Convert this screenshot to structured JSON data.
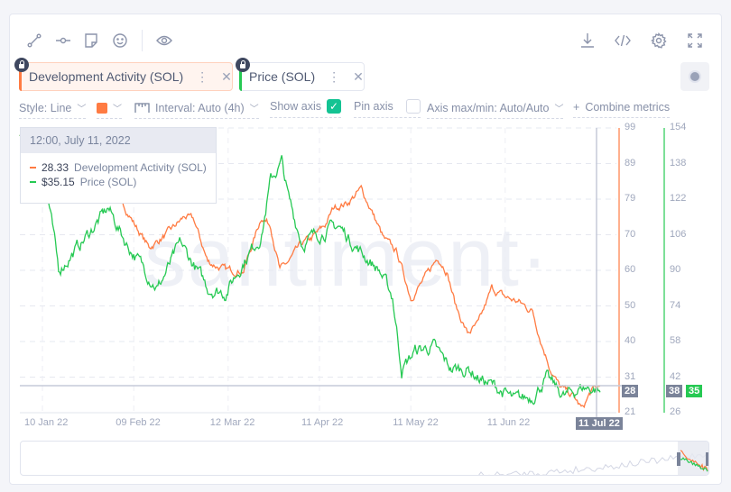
{
  "toolbar": {
    "left_icons": [
      "line-draw-icon",
      "horizontal-ray-icon",
      "note-icon",
      "emoji-icon",
      "eye-icon"
    ],
    "right_icons": [
      "download-icon",
      "embed-code-icon",
      "settings-icon",
      "fullscreen-icon"
    ]
  },
  "metrics": [
    {
      "label": "Development Activity (SOL)",
      "color": "#ff7b42",
      "locked": true
    },
    {
      "label": "Price (SOL)",
      "color": "#26c953",
      "locked": true
    }
  ],
  "options": {
    "style": "Style: Line",
    "color": "#ff7b42",
    "interval": "Interval: Auto (4h)",
    "show_axis": "Show axis",
    "show_axis_checked": true,
    "pin_axis": "Pin axis",
    "pin_axis_checked": false,
    "axis_maxmin": "Axis max/min: Auto/Auto",
    "combine": "Combine metrics",
    "combine_icon": "+"
  },
  "tooltip": {
    "date": "12:00, July 11, 2022",
    "rows": [
      {
        "value": "28.33",
        "label": "Development Activity (SOL)",
        "color": "#ff7b42"
      },
      {
        "value": "$35.15",
        "label": "Price (SOL)",
        "color": "#26c953"
      }
    ]
  },
  "watermark": "santiment·",
  "chart_data": {
    "type": "line",
    "x_unit": "days since 10 Jan 22",
    "x_ticks": [
      {
        "day": 0,
        "label": "10 Jan 22"
      },
      {
        "day": 30,
        "label": "09 Feb 22"
      },
      {
        "day": 61,
        "label": "12 Mar 22"
      },
      {
        "day": 91,
        "label": "11 Apr 22"
      },
      {
        "day": 121,
        "label": "11 May 22"
      },
      {
        "day": 152,
        "label": "11 Jun 22"
      },
      {
        "day": 182,
        "label": "11 Jul 22"
      }
    ],
    "x_range": [
      -7.5,
      189
    ],
    "series": [
      {
        "name": "Development Activity (SOL)",
        "color": "#ff7b42",
        "axis": "left",
        "ylim": [
          21,
          99
        ],
        "ticks": [
          "99",
          "89",
          "79",
          "70",
          "60",
          "50",
          "40",
          "31",
          "21"
        ],
        "current": "28",
        "points": [
          [
            -7.5,
            97
          ],
          [
            3.9,
            88.4
          ],
          [
            15.7,
            84.7
          ],
          [
            24.6,
            81
          ],
          [
            30.5,
            72.3
          ],
          [
            35,
            66.2
          ],
          [
            40.9,
            69.9
          ],
          [
            46.8,
            74.8
          ],
          [
            49.8,
            73.6
          ],
          [
            54.3,
            62.4
          ],
          [
            60.2,
            60
          ],
          [
            66.1,
            60
          ],
          [
            72,
            74.8
          ],
          [
            75,
            72.3
          ],
          [
            78,
            60
          ],
          [
            80.9,
            62.4
          ],
          [
            85.4,
            67.4
          ],
          [
            88.3,
            68.6
          ],
          [
            92.8,
            72.3
          ],
          [
            95.8,
            77.3
          ],
          [
            100.2,
            78.5
          ],
          [
            104.7,
            82.2
          ],
          [
            107.6,
            77.3
          ],
          [
            112.1,
            68.6
          ],
          [
            116.5,
            64.9
          ],
          [
            121,
            52.6
          ],
          [
            125.4,
            57.5
          ],
          [
            129.9,
            63.7
          ],
          [
            132.8,
            60
          ],
          [
            135.8,
            50.1
          ],
          [
            139.6,
            42.7
          ],
          [
            143.2,
            45.2
          ],
          [
            147.6,
            55
          ],
          [
            152.1,
            52.6
          ],
          [
            156.5,
            51.3
          ],
          [
            161,
            48.8
          ],
          [
            163.9,
            40.2
          ],
          [
            166.9,
            33
          ],
          [
            169.9,
            28
          ],
          [
            174.3,
            25.6
          ],
          [
            177.3,
            21.9
          ],
          [
            180.2,
            26.8
          ],
          [
            183.2,
            28.3
          ]
        ]
      },
      {
        "name": "Price (SOL)",
        "color": "#26c953",
        "axis": "right",
        "ylim": [
          26,
          154
        ],
        "ticks": [
          "154",
          "138",
          "122",
          "106",
          "90",
          "74",
          "58",
          "42",
          "26"
        ],
        "current": "35",
        "crosshair": "38",
        "points": [
          [
            -7.5,
            150.8
          ],
          [
            0,
            140
          ],
          [
            5.3,
            90
          ],
          [
            12.7,
            102
          ],
          [
            21.6,
            118
          ],
          [
            27.6,
            102
          ],
          [
            37.9,
            82
          ],
          [
            45.4,
            102
          ],
          [
            54.3,
            82
          ],
          [
            60.2,
            80
          ],
          [
            66.1,
            94
          ],
          [
            72,
            106
          ],
          [
            75,
            130.5
          ],
          [
            78.6,
            138.6
          ],
          [
            80.9,
            122
          ],
          [
            85.4,
            102
          ],
          [
            89.8,
            106
          ],
          [
            97.2,
            110
          ],
          [
            104.7,
            98
          ],
          [
            110.6,
            90
          ],
          [
            115,
            78
          ],
          [
            118,
            45.6
          ],
          [
            122.4,
            53.7
          ],
          [
            128.4,
            55.7
          ],
          [
            134.3,
            45.6
          ],
          [
            140.2,
            45.6
          ],
          [
            143.2,
            41.6
          ],
          [
            149.1,
            37.4
          ],
          [
            155,
            31.4
          ],
          [
            161,
            33.4
          ],
          [
            165.4,
            41.6
          ],
          [
            171.4,
            33.4
          ],
          [
            177.3,
            37.4
          ],
          [
            181.7,
            36.6
          ],
          [
            183.2,
            35.2
          ]
        ]
      }
    ],
    "crosshair_date": "11 Jul 22",
    "grid": true
  }
}
